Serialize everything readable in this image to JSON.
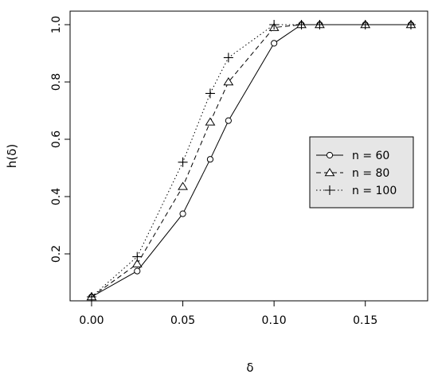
{
  "chart_data": {
    "type": "line",
    "xlabel": "δ",
    "ylabel": "h(δ)",
    "xlim": [
      0,
      0.175
    ],
    "ylim": [
      0.05,
      1.0
    ],
    "x_ticks": [
      0.0,
      0.05,
      0.1,
      0.15
    ],
    "x_tick_labels": [
      "0.00",
      "0.05",
      "0.10",
      "0.15"
    ],
    "y_ticks": [
      0.2,
      0.4,
      0.6,
      0.8,
      1.0
    ],
    "y_tick_labels": [
      "0.2",
      "0.4",
      "0.6",
      "0.8",
      "1.0"
    ],
    "legend_position": "right",
    "series": [
      {
        "name": "n = 60",
        "marker": "circle",
        "dash": "solid",
        "x": [
          0.0,
          0.025,
          0.05,
          0.065,
          0.075,
          0.1,
          0.115,
          0.125,
          0.15,
          0.175
        ],
        "y": [
          0.05,
          0.14,
          0.34,
          0.53,
          0.665,
          0.935,
          1.0,
          1.0,
          1.0,
          1.0
        ]
      },
      {
        "name": "n = 80",
        "marker": "triangle",
        "dash": "dashed",
        "x": [
          0.0,
          0.025,
          0.05,
          0.065,
          0.075,
          0.1,
          0.115,
          0.125,
          0.15,
          0.175
        ],
        "y": [
          0.05,
          0.165,
          0.435,
          0.66,
          0.8,
          0.99,
          1.0,
          1.0,
          1.0,
          1.0
        ]
      },
      {
        "name": "n = 100",
        "marker": "plus",
        "dash": "dotted",
        "x": [
          0.0,
          0.025,
          0.05,
          0.065,
          0.075,
          0.1,
          0.115,
          0.125,
          0.15,
          0.175
        ],
        "y": [
          0.05,
          0.19,
          0.52,
          0.76,
          0.885,
          1.0,
          1.0,
          1.0,
          1.0,
          1.0
        ]
      }
    ]
  }
}
